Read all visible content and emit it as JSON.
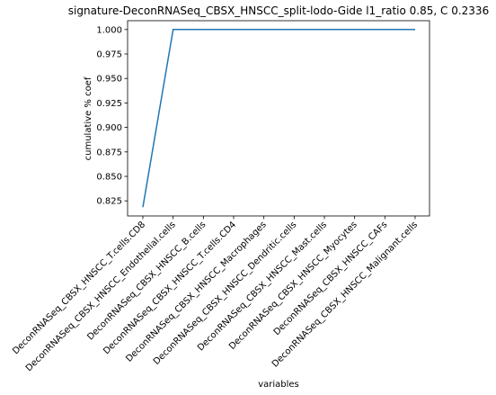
{
  "chart_data": {
    "type": "line",
    "title": "signature-DeconRNASeq_CBSX_HNSCC_split-lodo-Gide l1_ratio 0.85, C 0.2336",
    "xlabel": "variables",
    "ylabel": "cumulative % coef",
    "categories": [
      "DeconRNASeq_CBSX_HNSCC_T.cells.CD8",
      "DeconRNASeq_CBSX_HNSCC_Endothelial.cells",
      "DeconRNASeq_CBSX_HNSCC_B.cells",
      "DeconRNASeq_CBSX_HNSCC_T.cells.CD4",
      "DeconRNASeq_CBSX_HNSCC_Macrophages",
      "DeconRNASeq_CBSX_HNSCC_Dendritic.cells",
      "DeconRNASeq_CBSX_HNSCC_Mast.cells",
      "DeconRNASeq_CBSX_HNSCC_Myocytes",
      "DeconRNASeq_CBSX_HNSCC_CAFs",
      "DeconRNASeq_CBSX_HNSCC_Malignant.cells"
    ],
    "series": [
      {
        "values": [
          0.8186,
          1.0,
          1.0,
          1.0,
          1.0,
          1.0,
          1.0,
          1.0,
          1.0,
          1.0
        ]
      }
    ],
    "yticks": [
      "0.825",
      "0.850",
      "0.875",
      "0.900",
      "0.925",
      "0.950",
      "0.975",
      "1.000"
    ],
    "ylim": [
      0.8096,
      1.009
    ],
    "grid": false,
    "legend": "none",
    "line_color": "#1f77b4"
  }
}
